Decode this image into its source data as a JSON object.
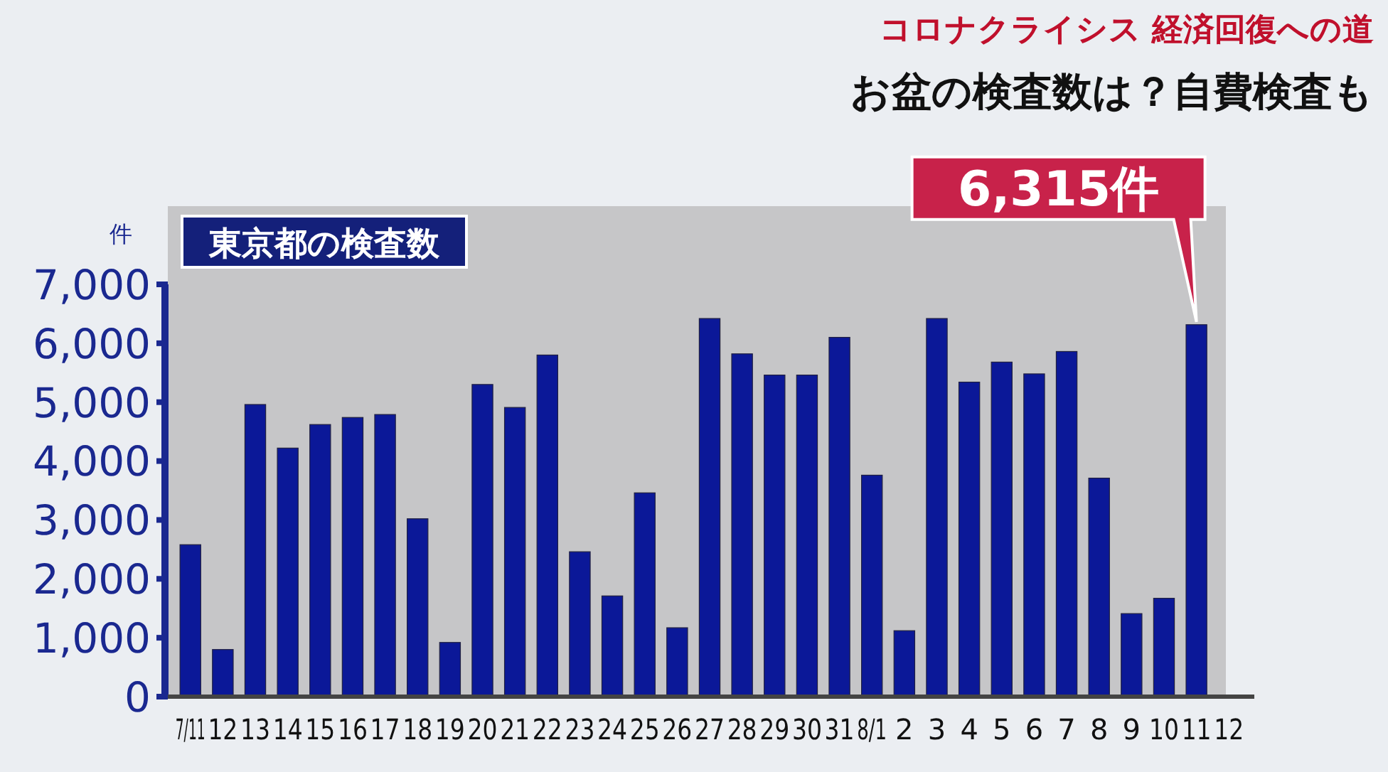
{
  "chart_data": {
    "type": "bar",
    "title": "コロナクライシス 経済回復への道",
    "subtitle": "お盆の検査数は？自費検査も",
    "legend_title": "東京都の検査数",
    "ylabel": "件",
    "categories": [
      "7/11",
      "12",
      "13",
      "14",
      "15",
      "16",
      "17",
      "18",
      "19",
      "20",
      "21",
      "22",
      "23",
      "24",
      "25",
      "26",
      "27",
      "28",
      "29",
      "30",
      "31",
      "8/1",
      "2",
      "3",
      "4",
      "5",
      "6",
      "7",
      "8",
      "9",
      "10",
      "11",
      "12"
    ],
    "values": [
      2580,
      800,
      4960,
      4220,
      4620,
      4740,
      4790,
      3020,
      920,
      5300,
      4910,
      5800,
      2460,
      1710,
      3460,
      1170,
      6420,
      5820,
      5460,
      5460,
      6100,
      3760,
      1120,
      6420,
      5340,
      5680,
      5480,
      5860,
      3710,
      1410,
      1670,
      6315,
      null
    ],
    "color": "#0b1898",
    "ylim": [
      0,
      7000
    ],
    "yticks": [
      {
        "value": 0,
        "label": "0"
      },
      {
        "value": 1000,
        "label": "1,000"
      },
      {
        "value": 2000,
        "label": "2,000"
      },
      {
        "value": 3000,
        "label": "3,000"
      },
      {
        "value": 4000,
        "label": "4,000"
      },
      {
        "value": 5000,
        "label": "5,000"
      },
      {
        "value": 6000,
        "label": "6,000"
      },
      {
        "value": 7000,
        "label": "7,000"
      }
    ],
    "annotations": [
      {
        "text": "6,315件",
        "x": "11",
        "y": 6315
      }
    ]
  }
}
